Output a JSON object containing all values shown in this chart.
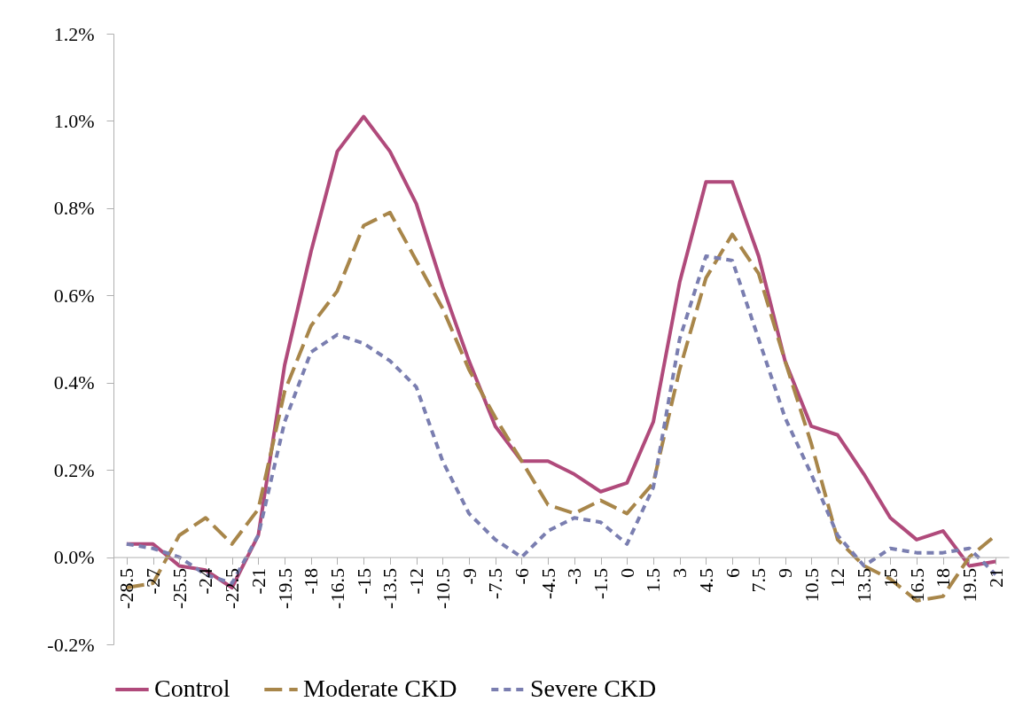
{
  "chart_data": {
    "type": "line",
    "categories": [
      "-28.5",
      "-27",
      "-25.5",
      "-24",
      "-22.5",
      "-21",
      "-19.5",
      "-18",
      "-16.5",
      "-15",
      "-13.5",
      "-12",
      "-10.5",
      "-9",
      "-7.5",
      "-6",
      "-4.5",
      "-3",
      "-1.5",
      "0",
      "1.5",
      "3",
      "4.5",
      "6",
      "7.5",
      "9",
      "10.5",
      "12",
      "13.5",
      "15",
      "16.5",
      "18",
      "19.5",
      "21"
    ],
    "series": [
      {
        "name": "Control",
        "color": "#b04a7b",
        "line_style": "solid",
        "values": [
          0.03,
          0.03,
          -0.02,
          -0.03,
          -0.07,
          0.05,
          0.44,
          0.7,
          0.93,
          1.01,
          0.93,
          0.81,
          0.62,
          0.45,
          0.3,
          0.22,
          0.22,
          0.19,
          0.15,
          0.17,
          0.31,
          0.63,
          0.86,
          0.86,
          0.69,
          0.45,
          0.3,
          0.28,
          0.19,
          0.09,
          0.04,
          0.06,
          -0.02,
          -0.01
        ]
      },
      {
        "name": "Moderate CKD",
        "color": "#a8864a",
        "line_style": "dashed",
        "values": [
          -0.07,
          -0.06,
          0.05,
          0.09,
          0.03,
          0.11,
          0.38,
          0.53,
          0.61,
          0.76,
          0.79,
          0.68,
          0.57,
          0.43,
          0.32,
          0.22,
          0.12,
          0.1,
          0.13,
          0.1,
          0.17,
          0.43,
          0.64,
          0.74,
          0.65,
          0.45,
          0.26,
          0.04,
          -0.02,
          -0.05,
          -0.1,
          -0.09,
          0.0,
          0.05
        ]
      },
      {
        "name": "Severe CKD",
        "color": "#7a7eb0",
        "line_style": "dotted",
        "values": [
          0.03,
          0.02,
          0.0,
          -0.04,
          -0.06,
          0.05,
          0.31,
          0.47,
          0.51,
          0.49,
          0.45,
          0.39,
          0.22,
          0.1,
          0.04,
          0.0,
          0.06,
          0.09,
          0.08,
          0.03,
          0.16,
          0.5,
          0.69,
          0.68,
          0.5,
          0.32,
          0.19,
          0.05,
          -0.02,
          0.02,
          0.01,
          0.01,
          0.02,
          -0.04
        ]
      }
    ],
    "ylim": [
      -0.2,
      1.2
    ],
    "yticks": [
      {
        "value": -0.2,
        "label": "-0.2%"
      },
      {
        "value": 0,
        "label": "0.0%"
      },
      {
        "value": 0.2,
        "label": "0.2%"
      },
      {
        "value": 0.4,
        "label": "0.4%"
      },
      {
        "value": 0.6,
        "label": "0.6%"
      },
      {
        "value": 0.8,
        "label": "0.8%"
      },
      {
        "value": 1.0,
        "label": "1.0%"
      },
      {
        "value": 1.2,
        "label": "1.2%"
      }
    ],
    "grid": false,
    "legend": "bottom"
  }
}
